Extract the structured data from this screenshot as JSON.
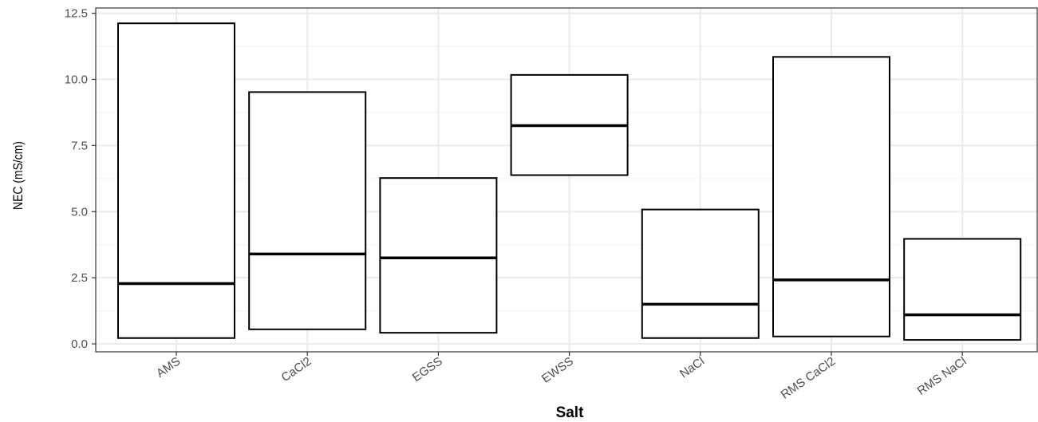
{
  "chart_data": {
    "type": "boxplot",
    "xlabel": "Salt",
    "ylabel": "NEC (mS/cm)",
    "ylim": [
      -0.3,
      12.7
    ],
    "yticks": [
      0.0,
      2.5,
      5.0,
      7.5,
      10.0,
      12.5
    ],
    "ytick_labels": [
      "0.0",
      "2.5",
      "5.0",
      "7.5",
      "10.0",
      "12.5"
    ],
    "categories": [
      "AMS",
      "CaCl2",
      "EGSS",
      "EWSS",
      "NaCl",
      "RMS CaCl2",
      "RMS NaCl"
    ],
    "boxes": [
      {
        "category": "AMS",
        "lower": 0.22,
        "median": 2.28,
        "upper": 12.12
      },
      {
        "category": "CaCl2",
        "lower": 0.55,
        "median": 3.4,
        "upper": 9.52
      },
      {
        "category": "EGSS",
        "lower": 0.42,
        "median": 3.25,
        "upper": 6.27
      },
      {
        "category": "EWSS",
        "lower": 6.38,
        "median": 8.25,
        "upper": 10.17
      },
      {
        "category": "NaCl",
        "lower": 0.22,
        "median": 1.5,
        "upper": 5.08
      },
      {
        "category": "RMS CaCl2",
        "lower": 0.28,
        "median": 2.42,
        "upper": 10.85
      },
      {
        "category": "RMS NaCl",
        "lower": 0.15,
        "median": 1.1,
        "upper": 3.97
      }
    ],
    "grid": true,
    "legend": "none",
    "colors": {
      "box_fill": "#ffffff",
      "box_stroke": "#000000",
      "grid_major": "#ebebeb",
      "grid_minor": "#f5f5f5"
    }
  }
}
